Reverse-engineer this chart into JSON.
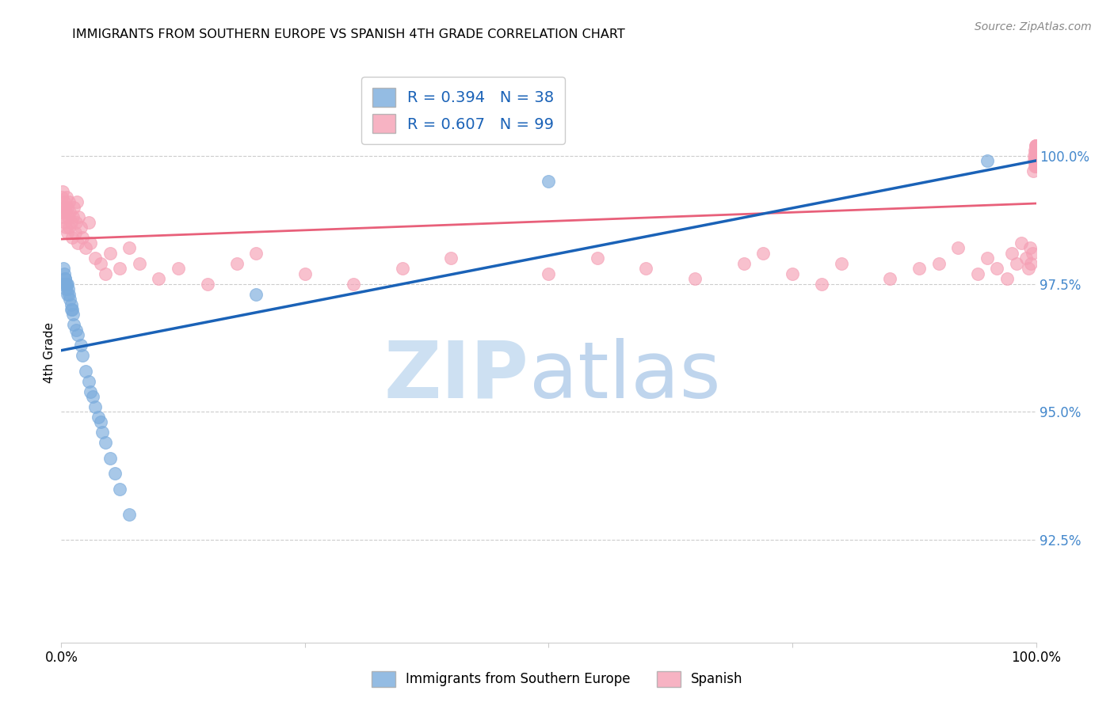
{
  "title": "IMMIGRANTS FROM SOUTHERN EUROPE VS SPANISH 4TH GRADE CORRELATION CHART",
  "source": "Source: ZipAtlas.com",
  "ylabel": "4th Grade",
  "legend_labels": [
    "Immigrants from Southern Europe",
    "Spanish"
  ],
  "blue_R": 0.394,
  "blue_N": 38,
  "pink_R": 0.607,
  "pink_N": 99,
  "xlim": [
    0,
    100
  ],
  "ylim": [
    90.5,
    101.8
  ],
  "right_yticks": [
    92.5,
    95.0,
    97.5,
    100.0
  ],
  "blue_color": "#7aabdc",
  "pink_color": "#f5a0b5",
  "blue_line_color": "#1a62b7",
  "pink_line_color": "#e8607a",
  "axis_label_color": "#4488cc",
  "blue_x": [
    0.1,
    0.2,
    0.3,
    0.35,
    0.4,
    0.5,
    0.55,
    0.6,
    0.65,
    0.7,
    0.8,
    0.9,
    1.0,
    1.05,
    1.1,
    1.2,
    1.3,
    1.5,
    1.7,
    2.0,
    2.2,
    2.5,
    2.8,
    3.0,
    3.2,
    3.5,
    3.8,
    4.0,
    4.2,
    4.5,
    5.0,
    5.5,
    6.0,
    7.0,
    20.0,
    50.0,
    95.0,
    0.45
  ],
  "blue_y": [
    97.5,
    97.8,
    97.7,
    97.6,
    97.6,
    97.4,
    97.5,
    97.3,
    97.5,
    97.4,
    97.3,
    97.2,
    97.1,
    97.0,
    97.0,
    96.9,
    96.7,
    96.6,
    96.5,
    96.3,
    96.1,
    95.8,
    95.6,
    95.4,
    95.3,
    95.1,
    94.9,
    94.8,
    94.6,
    94.4,
    94.1,
    93.8,
    93.5,
    93.0,
    97.3,
    99.5,
    99.9,
    97.5
  ],
  "pink_x": [
    0.05,
    0.1,
    0.15,
    0.2,
    0.25,
    0.3,
    0.35,
    0.4,
    0.45,
    0.5,
    0.55,
    0.6,
    0.65,
    0.7,
    0.75,
    0.8,
    0.9,
    1.0,
    1.1,
    1.2,
    1.3,
    1.4,
    1.5,
    1.6,
    1.7,
    1.8,
    2.0,
    2.2,
    2.5,
    2.8,
    3.0,
    3.5,
    4.0,
    4.5,
    5.0,
    6.0,
    7.0,
    8.0,
    10.0,
    12.0,
    15.0,
    18.0,
    20.0,
    25.0,
    30.0,
    35.0,
    40.0,
    50.0,
    55.0,
    60.0,
    65.0,
    70.0,
    72.0,
    75.0,
    78.0,
    80.0,
    85.0,
    88.0,
    90.0,
    92.0,
    94.0,
    95.0,
    96.0,
    97.0,
    97.5,
    98.0,
    98.5,
    99.0,
    99.2,
    99.4,
    99.5,
    99.6,
    99.7,
    99.75,
    99.8,
    99.85,
    99.9,
    99.92,
    99.94,
    99.96,
    99.97,
    99.98,
    99.985,
    99.99,
    99.992,
    99.994,
    99.995,
    99.996,
    99.997,
    99.998,
    99.999,
    99.9992,
    99.9994,
    99.9996,
    99.9998,
    99.9999,
    99.99995,
    99.99998,
    99.99999
  ],
  "pink_y": [
    99.2,
    98.9,
    99.3,
    99.0,
    98.8,
    99.1,
    98.7,
    99.0,
    98.6,
    98.9,
    99.2,
    98.5,
    99.0,
    98.8,
    99.1,
    98.6,
    98.9,
    98.7,
    98.4,
    98.8,
    99.0,
    98.5,
    98.7,
    99.1,
    98.3,
    98.8,
    98.6,
    98.4,
    98.2,
    98.7,
    98.3,
    98.0,
    97.9,
    97.7,
    98.1,
    97.8,
    98.2,
    97.9,
    97.6,
    97.8,
    97.5,
    97.9,
    98.1,
    97.7,
    97.5,
    97.8,
    98.0,
    97.7,
    98.0,
    97.8,
    97.6,
    97.9,
    98.1,
    97.7,
    97.5,
    97.9,
    97.6,
    97.8,
    97.9,
    98.2,
    97.7,
    98.0,
    97.8,
    97.6,
    98.1,
    97.9,
    98.3,
    98.0,
    97.8,
    98.2,
    97.9,
    98.1,
    99.7,
    99.9,
    100.0,
    99.8,
    100.1,
    99.9,
    100.0,
    100.2,
    99.8,
    100.1,
    99.9,
    100.2,
    100.0,
    99.8,
    100.1,
    100.0,
    99.9,
    100.2,
    100.1,
    99.8,
    100.0,
    100.2,
    99.9,
    100.1,
    100.0,
    100.2,
    99.9
  ]
}
